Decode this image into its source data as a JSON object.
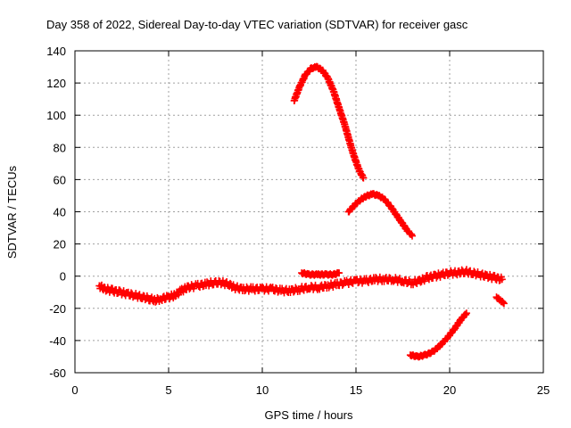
{
  "chart_data": {
    "type": "scatter",
    "title": "Day 358 of 2022, Sidereal Day-to-day VTEC variation (SDTVAR) for receiver gasc",
    "xlabel": "GPS time / hours",
    "ylabel": "SDTVAR / TECUs",
    "xlim": [
      0,
      25
    ],
    "ylim": [
      -60,
      140
    ],
    "xticks": [
      0,
      5,
      10,
      15,
      20,
      25
    ],
    "yticks": [
      -60,
      -40,
      -20,
      0,
      20,
      40,
      60,
      80,
      100,
      120,
      140
    ],
    "grid": true,
    "marker": "plus",
    "series_color": "#ff0000",
    "series": [
      {
        "name": "main-band",
        "x": [
          1.3,
          1.6,
          2.0,
          2.4,
          2.8,
          3.2,
          3.6,
          4.0,
          4.3,
          4.6,
          5.0,
          5.3,
          5.7,
          6.0,
          6.5,
          7.0,
          7.4,
          7.8,
          8.2,
          8.5,
          9.0,
          9.5,
          10.0,
          10.5,
          11.0,
          11.5,
          12.0,
          12.5,
          13.0,
          13.5,
          14.0,
          14.5,
          15.0,
          15.5,
          16.0,
          16.5,
          17.0,
          17.5,
          18.0,
          18.4,
          18.8,
          19.2,
          19.6,
          20.0,
          20.4,
          20.8,
          21.2,
          21.6,
          22.0,
          22.4,
          22.8
        ],
        "y": [
          -6,
          -8,
          -9,
          -10,
          -11,
          -12,
          -13,
          -14,
          -15,
          -14,
          -13,
          -12,
          -9,
          -7,
          -6,
          -5,
          -4,
          -4,
          -5,
          -7,
          -8,
          -8,
          -8,
          -8,
          -9,
          -9,
          -8,
          -7,
          -7,
          -6,
          -5,
          -4,
          -3,
          -3,
          -2,
          -2,
          -2,
          -3,
          -4,
          -3,
          -1,
          0,
          1,
          2,
          2,
          3,
          2,
          1,
          0,
          -1,
          -2
        ]
      },
      {
        "name": "upper-arc",
        "x": [
          11.7,
          12.0,
          12.3,
          12.6,
          12.9,
          13.2,
          13.5,
          13.8,
          14.0,
          14.2,
          14.4,
          14.6,
          14.8,
          15.0,
          15.2,
          15.4
        ],
        "y": [
          109,
          118,
          125,
          129,
          130,
          128,
          123,
          115,
          108,
          101,
          94,
          86,
          78,
          71,
          65,
          61
        ]
      },
      {
        "name": "middle-arc",
        "x": [
          14.6,
          15.0,
          15.3,
          15.6,
          15.9,
          16.2,
          16.5,
          16.8,
          17.1,
          17.4,
          17.7,
          18.0
        ],
        "y": [
          40,
          45,
          48,
          50,
          51,
          50,
          48,
          44,
          39,
          34,
          29,
          25
        ]
      },
      {
        "name": "small-segment",
        "x": [
          12.1,
          12.5,
          13.0,
          13.4,
          13.8,
          14.1
        ],
        "y": [
          2,
          1,
          1,
          1,
          1,
          2
        ]
      },
      {
        "name": "lower-arc",
        "x": [
          17.9,
          18.3,
          18.7,
          19.1,
          19.5,
          19.9,
          20.3,
          20.6,
          20.9
        ],
        "y": [
          -49,
          -50,
          -49,
          -47,
          -43,
          -38,
          -32,
          -27,
          -23
        ]
      },
      {
        "name": "tail-segment",
        "x": [
          22.5,
          22.7,
          22.9
        ],
        "y": [
          -13,
          -15,
          -17
        ]
      }
    ]
  }
}
